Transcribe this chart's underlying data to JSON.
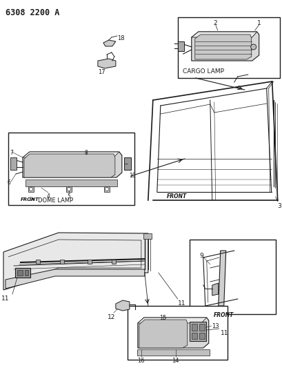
{
  "title": "6308 2200 A",
  "bg_color": "#ffffff",
  "line_color": "#1a1a1a",
  "cargo_lamp_label": "CARGO LAMP",
  "dome_lamp_label": "DOME LAMP",
  "front_label": "FRONT"
}
